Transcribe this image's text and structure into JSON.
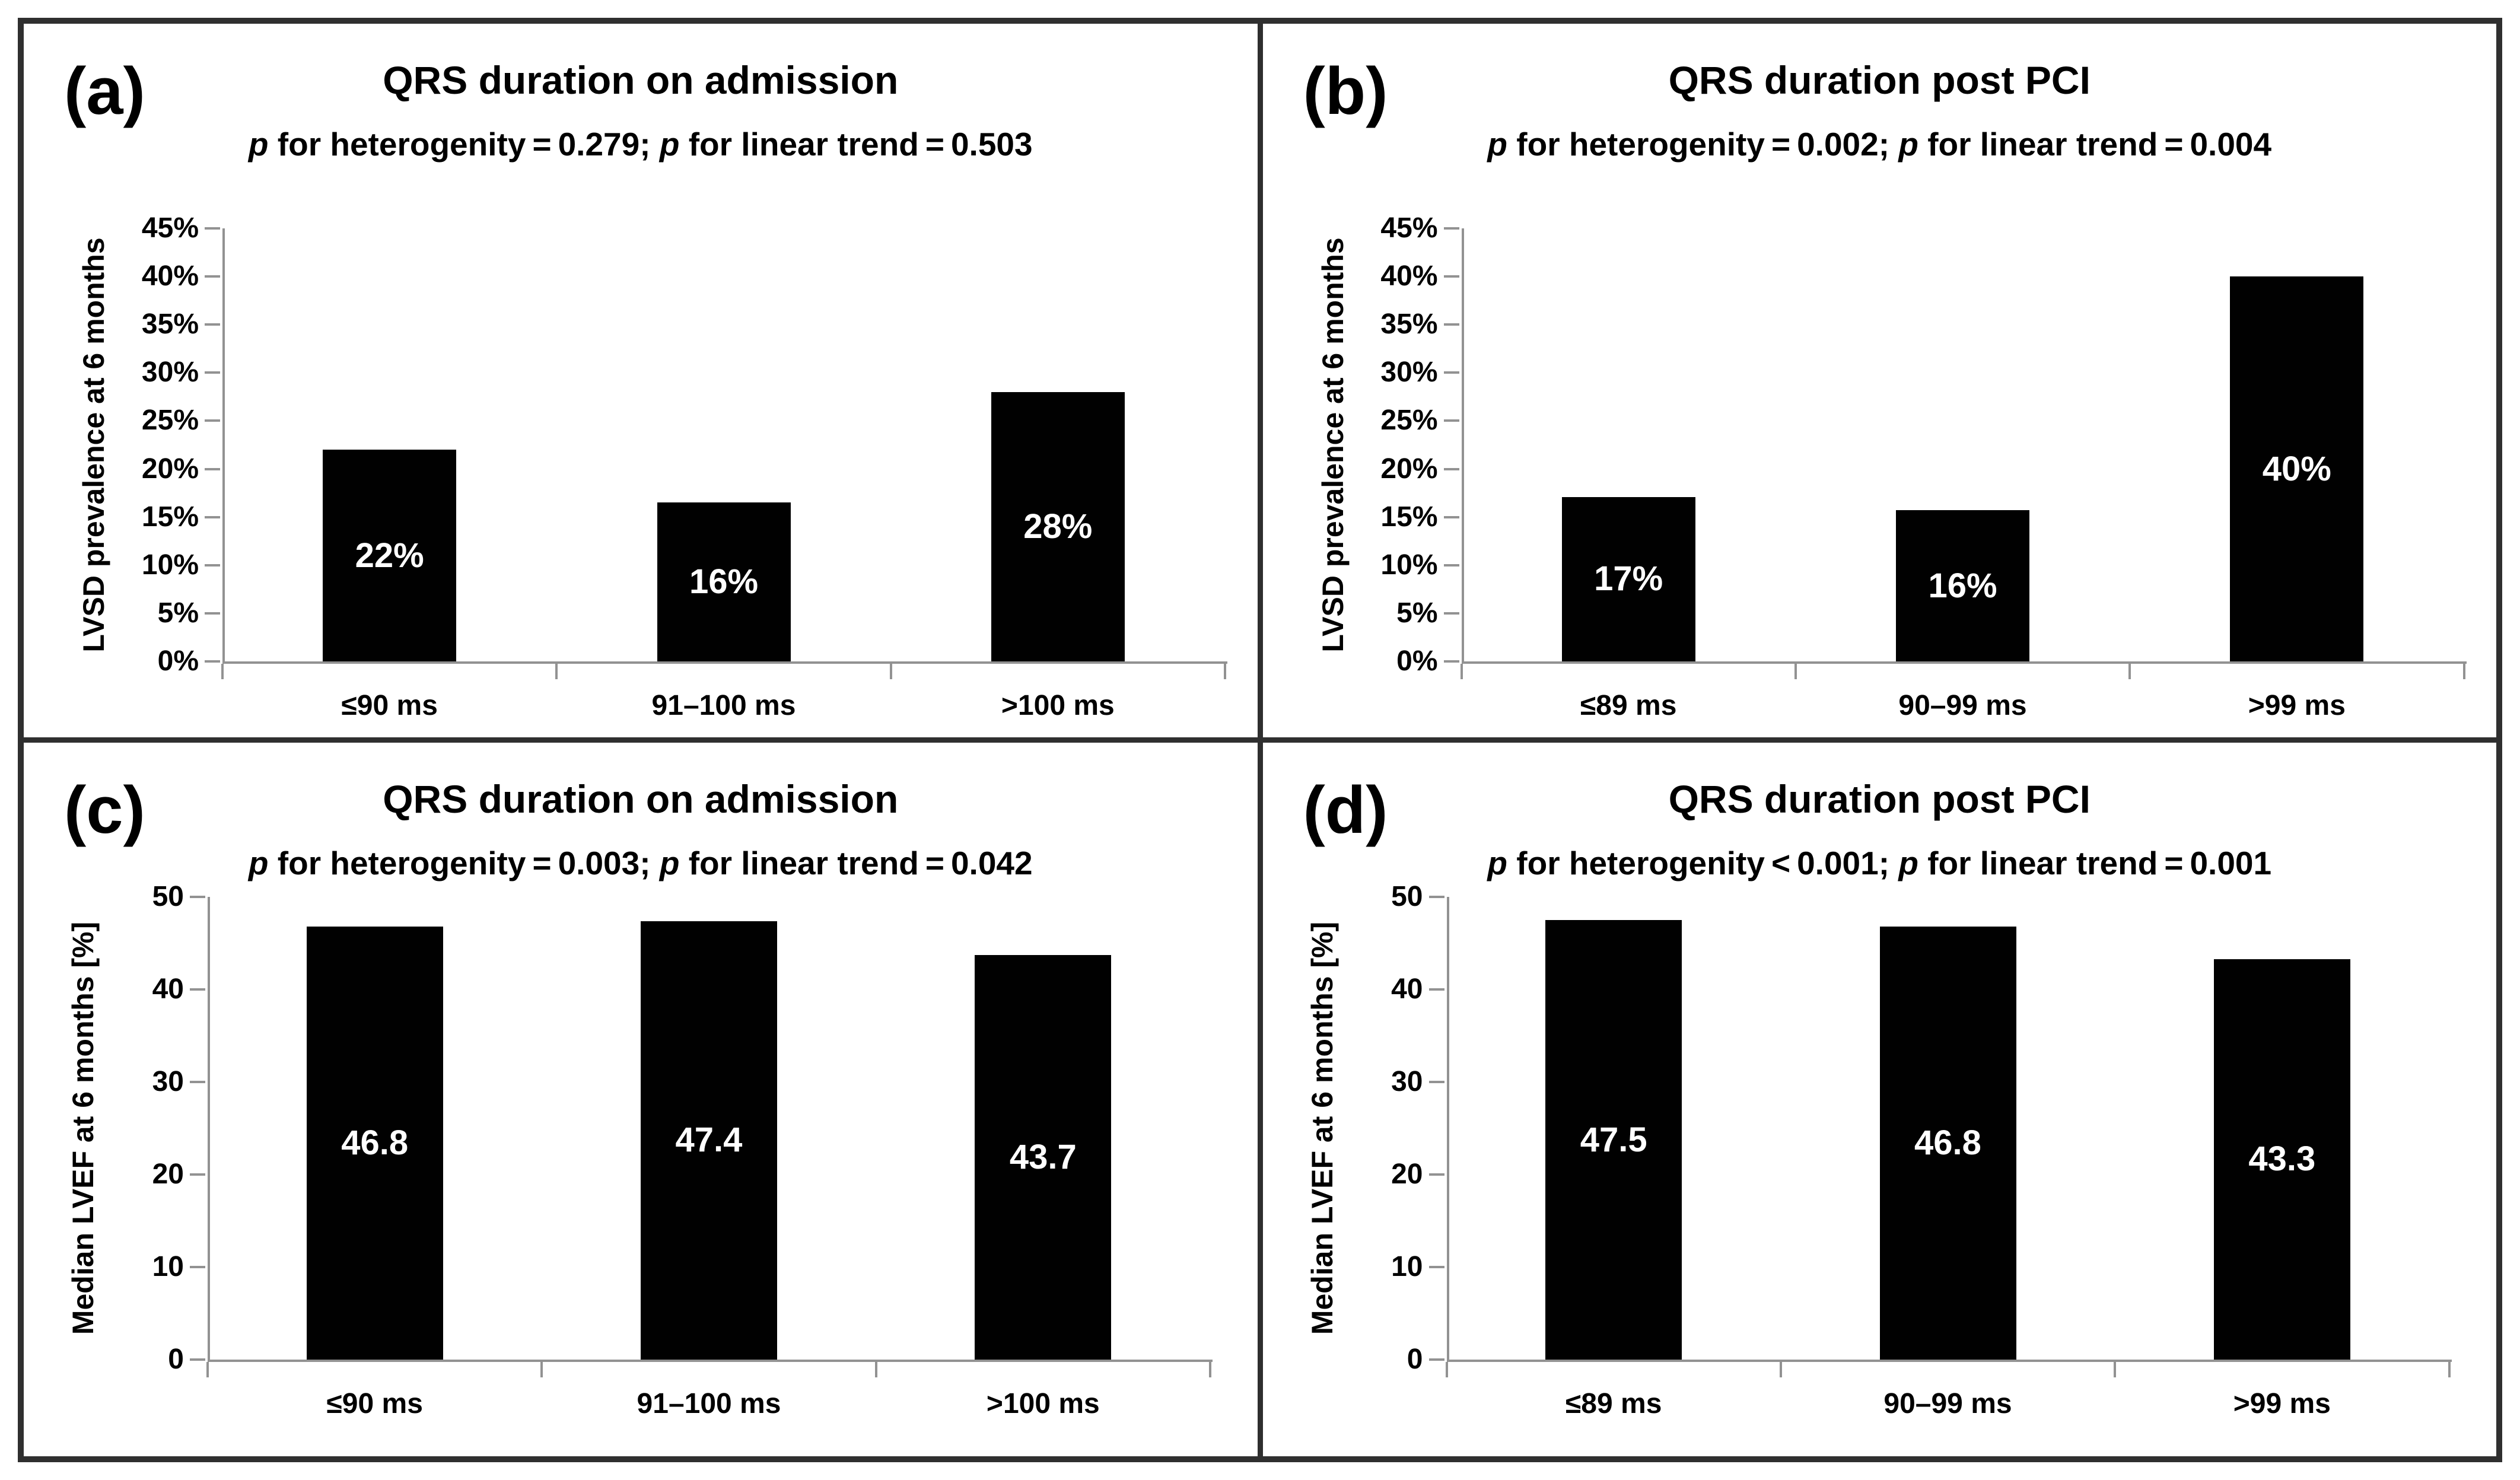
{
  "figure_title": "QRS duration four-panel bar figure",
  "panels": [
    {
      "label": "(a)",
      "title": "QRS duration on admission",
      "subtitle": {
        "p1": "p",
        "t1": " for heterogenity = 0.279; ",
        "p2": "p",
        "t2": " for linear trend = 0.503"
      },
      "y_axis_title": "LVSD prevalence at 6 months"
    },
    {
      "label": "(b)",
      "title": "QRS duration post PCI",
      "subtitle": {
        "p1": "p",
        "t1": " for heterogenity = 0.002; ",
        "p2": "p",
        "t2": " for linear trend = 0.004"
      },
      "y_axis_title": "LVSD prevalence at 6 months"
    },
    {
      "label": "(c)",
      "title": "QRS duration on admission",
      "subtitle": {
        "p1": "p",
        "t1": " for heterogenity = 0.003; ",
        "p2": "p",
        "t2": " for linear trend = 0.042"
      },
      "y_axis_title": "Median LVEF at 6 months [%]"
    },
    {
      "label": "(d)",
      "title": "QRS duration post PCI",
      "subtitle": {
        "p1": "p",
        "t1": " for heterogenity < 0.001; ",
        "p2": "p",
        "t2": " for linear trend = 0.001"
      },
      "y_axis_title": "Median LVEF at 6 months [%]"
    }
  ],
  "chart_data": [
    {
      "type": "bar",
      "title": "QRS duration on admission",
      "subtitle": "p for heterogenity=0.279; p for linear trend=0.503",
      "categories": [
        "≤90 ms",
        "91–100 ms",
        ">100 ms"
      ],
      "values": [
        22,
        16,
        28
      ],
      "display_values": [
        22,
        16.5,
        28
      ],
      "bar_labels": [
        "22%",
        "16%",
        "28%"
      ],
      "ylabel": "LVSD prevalence at 6 months",
      "xlabel": "",
      "ylim": [
        0,
        45
      ],
      "y_step": 5,
      "y_tick_labels": [
        "0%",
        "5%",
        "10%",
        "15%",
        "20%",
        "25%",
        "30%",
        "35%",
        "40%",
        "45%"
      ],
      "grid": false,
      "legend": "none",
      "bar_color": "#010101",
      "axis_color": "#929292",
      "value_label_position": "center"
    },
    {
      "type": "bar",
      "title": "QRS duration post PCI",
      "subtitle": "p for heterogenity=0.002; p for linear trend=0.004",
      "categories": [
        "≤89 ms",
        "90–99 ms",
        ">99 ms"
      ],
      "values": [
        17,
        16,
        40
      ],
      "display_values": [
        17.1,
        15.7,
        40
      ],
      "bar_labels": [
        "17%",
        "16%",
        "40%"
      ],
      "ylabel": "LVSD prevalence at 6 months",
      "xlabel": "",
      "ylim": [
        0,
        45
      ],
      "y_step": 5,
      "y_tick_labels": [
        "0%",
        "5%",
        "10%",
        "15%",
        "20%",
        "25%",
        "30%",
        "35%",
        "40%",
        "45%"
      ],
      "grid": false,
      "legend": "none",
      "bar_color": "#010101",
      "axis_color": "#929292",
      "value_label_position": "center"
    },
    {
      "type": "bar",
      "title": "QRS duration on admission",
      "subtitle": "p for heterogenity=0.003; p for linear trend=0.042",
      "categories": [
        "≤90 ms",
        "91–100 ms",
        ">100 ms"
      ],
      "values": [
        46.8,
        47.4,
        43.7
      ],
      "display_values": [
        46.8,
        47.4,
        43.7
      ],
      "bar_labels": [
        "46.8",
        "47.4",
        "43.7"
      ],
      "ylabel": "Median LVEF at 6 months [%]",
      "xlabel": "",
      "ylim": [
        0,
        50
      ],
      "y_step": 10,
      "y_tick_labels": [
        "0",
        "10",
        "20",
        "30",
        "40",
        "50"
      ],
      "grid": false,
      "legend": "none",
      "bar_color": "#010101",
      "axis_color": "#929292",
      "value_label_position": "center"
    },
    {
      "type": "bar",
      "title": "QRS duration post PCI",
      "subtitle": "p for heterogenity<0.001; p for linear trend=0.001",
      "categories": [
        "≤89 ms",
        "90–99 ms",
        ">99 ms"
      ],
      "values": [
        47.5,
        46.8,
        43.3
      ],
      "display_values": [
        47.5,
        46.8,
        43.3
      ],
      "bar_labels": [
        "47.5",
        "46.8",
        "43.3"
      ],
      "ylabel": "Median LVEF at 6 months [%]",
      "xlabel": "",
      "ylim": [
        0,
        50
      ],
      "y_step": 10,
      "y_tick_labels": [
        "0",
        "10",
        "20",
        "30",
        "40",
        "50"
      ],
      "grid": false,
      "legend": "none",
      "bar_color": "#010101",
      "axis_color": "#929292",
      "value_label_position": "center"
    }
  ]
}
